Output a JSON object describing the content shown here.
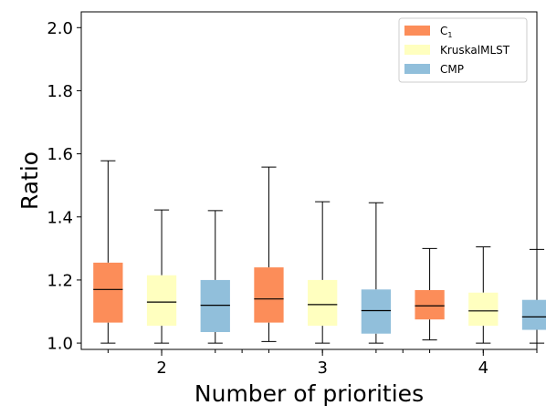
{
  "chart_data": {
    "type": "box",
    "xlabel": "Number of priorities",
    "ylabel": "Ratio",
    "ylim": [
      0.98,
      2.05
    ],
    "yticks": [
      "1.0",
      "1.2",
      "1.4",
      "1.6",
      "1.8",
      "2.0"
    ],
    "categories": [
      "2",
      "3",
      "4"
    ],
    "legend_position": "top-right",
    "grid": false,
    "series": [
      {
        "name": "C",
        "name_subscript": "1",
        "color": "#fc8d59",
        "boxes": [
          {
            "min": 1.0,
            "q1": 1.065,
            "median": 1.17,
            "q3": 1.255,
            "max": 1.578
          },
          {
            "min": 1.005,
            "q1": 1.065,
            "median": 1.14,
            "q3": 1.24,
            "max": 1.558
          },
          {
            "min": 1.01,
            "q1": 1.075,
            "median": 1.118,
            "q3": 1.168,
            "max": 1.3
          }
        ]
      },
      {
        "name": "KruskalMLST",
        "color": "#ffffbf",
        "boxes": [
          {
            "min": 1.0,
            "q1": 1.055,
            "median": 1.13,
            "q3": 1.215,
            "max": 1.422
          },
          {
            "min": 1.0,
            "q1": 1.055,
            "median": 1.122,
            "q3": 1.2,
            "max": 1.448
          },
          {
            "min": 1.0,
            "q1": 1.055,
            "median": 1.102,
            "q3": 1.16,
            "max": 1.305
          }
        ]
      },
      {
        "name": "CMP",
        "color": "#91bfdb",
        "boxes": [
          {
            "min": 1.0,
            "q1": 1.035,
            "median": 1.12,
            "q3": 1.2,
            "max": 1.42
          },
          {
            "min": 1.0,
            "q1": 1.03,
            "median": 1.103,
            "q3": 1.17,
            "max": 1.445
          },
          {
            "min": 1.0,
            "q1": 1.042,
            "median": 1.083,
            "q3": 1.137,
            "max": 1.297
          }
        ]
      }
    ]
  }
}
